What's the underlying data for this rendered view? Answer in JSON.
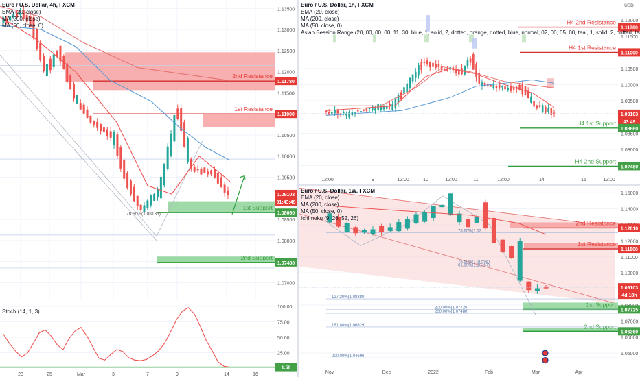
{
  "colors": {
    "up": "#26a69a",
    "down": "#ef5350",
    "resistance_text": "#e53935",
    "support_text": "#43a047",
    "res_zone": "#f7a1a1",
    "sup_zone": "#8fd49a",
    "res_line": "#d32f2f",
    "sup_line": "#2e9e3e",
    "ema": "#ef5350",
    "ma200": "#e57373",
    "ma50": "#5b9bd5",
    "stoch": "#ef5350",
    "badge_red": "#e53935",
    "badge_green": "#43a047",
    "axis_text": "#555"
  },
  "chart_data": [
    {
      "type": "candlestick",
      "title": "Euro / U.S. Dollar, 4h, FXCM",
      "indicators": [
        "EMA (20, close)",
        "MA (200, close)",
        "MA (50, close, 0)"
      ],
      "y_ticks": [
        "1.13500",
        "1.13000",
        "1.12500",
        "1.12000",
        "1.11500",
        "1.10500",
        "1.10000",
        "1.09500",
        "1.08500",
        "1.08000",
        "1.07500",
        "1.07000"
      ],
      "x_ticks": [
        "23",
        "25",
        "Mar",
        "3",
        "7",
        "9",
        "14",
        "16"
      ],
      "ylim": [
        1.066,
        1.137
      ],
      "badges": [
        {
          "value": "1.11780",
          "kind": "red"
        },
        {
          "value": "1.11000",
          "kind": "red"
        },
        {
          "value": "1.09103",
          "kind": "red"
        },
        {
          "value": "01:43:49",
          "kind": "red"
        },
        {
          "value": "1.08660",
          "kind": "green"
        },
        {
          "value": "1.07480",
          "kind": "green"
        }
      ],
      "levels": [
        {
          "label": "2nd Resistance",
          "value": 1.1178,
          "kind": "resistance"
        },
        {
          "label": "1st Resistance",
          "value": 1.11,
          "kind": "resistance"
        },
        {
          "label": "1st Support",
          "value": 1.0866,
          "kind": "support"
        },
        {
          "label": "2nd Support",
          "value": 1.0748,
          "kind": "support"
        }
      ],
      "fib_label": "78.60%(1.08133)",
      "subchart": {
        "title": "Stoch (14, 1, 3)",
        "y_ticks": [
          "100.00",
          "75.00",
          "50.00",
          "25.00"
        ],
        "last_badge": "1.58",
        "values": [
          55,
          40,
          28,
          18,
          24,
          40,
          57,
          62,
          52,
          38,
          30,
          48,
          60,
          66,
          52,
          34,
          16,
          13,
          22,
          30,
          27,
          17,
          13,
          12,
          14,
          20,
          28,
          40,
          58,
          78,
          92,
          98,
          88,
          68,
          45,
          28,
          10,
          3,
          1.58
        ]
      }
    },
    {
      "type": "candlestick",
      "title": "Euro / U.S. Dollar, 1h, FXCM",
      "indicators": [
        "EMA (20, close)",
        "MA (200, close)",
        "MA (50, close, 0)",
        "Asian Session Range (20, 00, 00, 00, 11, 30, blue, 1, solid, 2, dotted, orange, dotted, blue, normal, 02, 00, 05, 00, teal, 1, solid, 2, dotted, teal, dotted, teal, normal, 08,"
      ],
      "y_ticks": [
        "1.12000",
        "1.11500",
        "1.10500",
        "1.10000",
        "1.09500",
        "1.08500",
        "1.08000",
        "1.07500"
      ],
      "x_ticks": [
        "12:00",
        "9",
        "12:00",
        "10",
        "12:00",
        "11",
        "12:00",
        "14",
        "15",
        "12:00"
      ],
      "ylim": [
        1.0715,
        1.1245
      ],
      "badges": [
        {
          "value": "1.11780",
          "kind": "red"
        },
        {
          "value": "1.11000",
          "kind": "red"
        },
        {
          "value": "1.09103",
          "kind": "red"
        },
        {
          "value": "43:49",
          "kind": "red"
        },
        {
          "value": "1.08660",
          "kind": "green"
        },
        {
          "value": "1.07480",
          "kind": "green"
        }
      ],
      "levels": [
        {
          "label": "H4 2nd Resistance",
          "value": 1.1178,
          "kind": "resistance"
        },
        {
          "label": "H4 1st Resistance",
          "value": 1.11,
          "kind": "resistance"
        },
        {
          "label": "H4 1st Support",
          "value": 1.0866,
          "kind": "support"
        },
        {
          "label": "H4 2nd Support",
          "value": 1.0748,
          "kind": "support"
        }
      ],
      "axis_unit": "USD"
    },
    {
      "type": "candlestick",
      "title": "Euro / U.S. Dollar, 1W, FXCM",
      "indicators": [
        "EMA (20, close)",
        "MA (200, close)",
        "MA (50, close, 0)",
        "Ichimoku (9, 26, 52, 26)"
      ],
      "y_ticks": [
        "1.15000",
        "1.14000",
        "1.13000",
        "1.12000",
        "1.11000",
        "1.10000",
        "1.09000",
        "1.08000",
        "1.07000",
        "1.06000",
        "1.05000"
      ],
      "x_ticks": [
        "Nov",
        "Dec",
        "2022",
        "Feb",
        "Mar",
        "Apr"
      ],
      "ylim": [
        1.0415,
        1.1535
      ],
      "badges": [
        {
          "value": "1.12810",
          "kind": "red"
        },
        {
          "value": "1.11500",
          "kind": "red"
        },
        {
          "value": "1.09103",
          "kind": "red"
        },
        {
          "value": "4d 18h",
          "kind": "red"
        },
        {
          "value": "1.07725",
          "kind": "green"
        },
        {
          "value": "1.06360",
          "kind": "green"
        }
      ],
      "levels": [
        {
          "label": "2nd Resistance",
          "value": 1.1281,
          "kind": "resistance"
        },
        {
          "label": "1st Resistance",
          "value": 1.115,
          "kind": "resistance"
        },
        {
          "label": "1st Support",
          "value": 1.07725,
          "kind": "support"
        },
        {
          "label": "2nd Support",
          "value": 1.0636,
          "kind": "support"
        }
      ],
      "fib_labels": [
        "78.60%(1.12",
        "127.20%(1.08380)",
        "200.00%(1.07720)",
        "200.00%(1.07480)",
        "161.80%(1.06629)",
        "200.00%(1.04696)",
        "78.60%(1.10594)",
        "61.80%(1.10367)"
      ]
    }
  ]
}
